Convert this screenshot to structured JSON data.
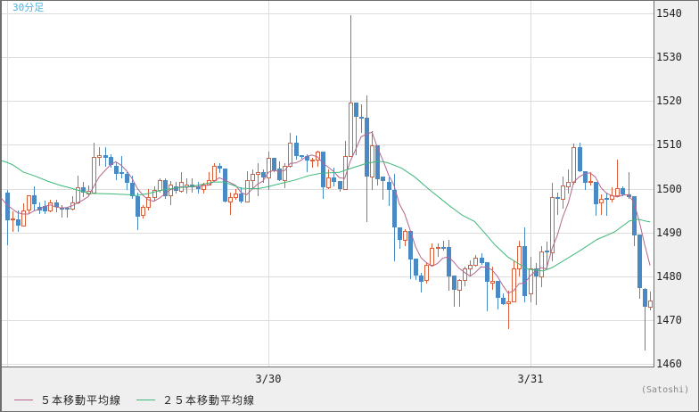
{
  "chart_data": {
    "type": "candlestick",
    "title": "30分足",
    "xlabel": "",
    "ylabel": "",
    "grid": true,
    "yaxis": {
      "position": "right",
      "range": [
        1460,
        1540
      ],
      "ticks": [
        1540,
        1530,
        1520,
        1510,
        1500,
        1490,
        1480,
        1470,
        1460
      ],
      "unit": "(Satoshi)"
    },
    "xaxis": {
      "labels": [
        {
          "text": "3/30",
          "index": 49
        },
        {
          "text": "3/31",
          "index": 97
        }
      ],
      "gridlines_at_index": [
        1,
        49,
        97
      ]
    },
    "legend": {
      "position": "bottom-left"
    },
    "colors": {
      "up": "#d9603b",
      "down": "#4a8ac4",
      "title": "#4db3e6",
      "grid": "#dddddd"
    },
    "candles_format": [
      "open",
      "high",
      "low",
      "close"
    ],
    "candles": [
      [
        1499.1,
        1499.6,
        1487.3,
        1492.7
      ],
      [
        1493.0,
        1494.9,
        1490.3,
        1493.2
      ],
      [
        1493.0,
        1495.1,
        1490.3,
        1491.6
      ],
      [
        1491.6,
        1496.6,
        1491.6,
        1495.1
      ],
      [
        1495.2,
        1498.5,
        1494.5,
        1498.4
      ],
      [
        1498.4,
        1500.5,
        1495.2,
        1496.4
      ],
      [
        1495.8,
        1496.9,
        1494.5,
        1495.0
      ],
      [
        1496.0,
        1497.3,
        1494.5,
        1494.8
      ],
      [
        1495.0,
        1497.5,
        1494.8,
        1496.8
      ],
      [
        1496.8,
        1497.4,
        1494.8,
        1495.9
      ],
      [
        1495.7,
        1496.2,
        1493.6,
        1495.5
      ],
      [
        1495.7,
        1495.9,
        1493.6,
        1495.4
      ],
      [
        1495.4,
        1498.3,
        1495.2,
        1496.8
      ],
      [
        1496.8,
        1503.0,
        1496.6,
        1500.3
      ],
      [
        1500.3,
        1501.5,
        1498.3,
        1499.0
      ],
      [
        1498.9,
        1500.7,
        1498.6,
        1499.5
      ],
      [
        1499.1,
        1510.5,
        1499.1,
        1507.3
      ],
      [
        1507.3,
        1509.5,
        1505.4,
        1507.6
      ],
      [
        1507.6,
        1509.5,
        1505.1,
        1507.1
      ],
      [
        1507.3,
        1507.9,
        1505.0,
        1505.3
      ],
      [
        1505.2,
        1506.0,
        1502.2,
        1503.4
      ],
      [
        1503.7,
        1507.4,
        1502.6,
        1503.3
      ],
      [
        1503.3,
        1503.7,
        1500.0,
        1501.3
      ],
      [
        1501.3,
        1503.0,
        1497.9,
        1498.3
      ],
      [
        1498.3,
        1499.0,
        1490.8,
        1493.6
      ],
      [
        1493.9,
        1496.2,
        1493.4,
        1495.9
      ],
      [
        1495.8,
        1500.0,
        1495.2,
        1498.1
      ],
      [
        1498.1,
        1500.6,
        1497.5,
        1499.6
      ],
      [
        1499.6,
        1502.3,
        1499.2,
        1501.9
      ],
      [
        1502.0,
        1502.3,
        1497.9,
        1498.3
      ],
      [
        1498.4,
        1501.8,
        1496.4,
        1500.9
      ],
      [
        1500.5,
        1501.5,
        1499.1,
        1499.5
      ],
      [
        1499.5,
        1503.7,
        1499.2,
        1501.5
      ],
      [
        1500.6,
        1502.4,
        1499.1,
        1500.9
      ],
      [
        1500.9,
        1502.4,
        1499.2,
        1500.3
      ],
      [
        1500.6,
        1501.5,
        1499.1,
        1499.8
      ],
      [
        1499.8,
        1501.4,
        1499.1,
        1501.0
      ],
      [
        1501.0,
        1503.8,
        1500.9,
        1501.9
      ],
      [
        1501.9,
        1505.9,
        1501.7,
        1505.2
      ],
      [
        1505.2,
        1505.9,
        1503.7,
        1504.5
      ],
      [
        1504.5,
        1504.5,
        1497.1,
        1497.1
      ],
      [
        1497.1,
        1499.0,
        1494.3,
        1498.1
      ],
      [
        1498.0,
        1499.8,
        1497.7,
        1498.8
      ],
      [
        1498.8,
        1500.3,
        1496.8,
        1497.1
      ],
      [
        1497.1,
        1504.0,
        1497.1,
        1501.9
      ],
      [
        1501.9,
        1504.4,
        1500.3,
        1503.4
      ],
      [
        1503.4,
        1505.7,
        1498.4,
        1503.8
      ],
      [
        1503.8,
        1504.4,
        1501.5,
        1502.5
      ],
      [
        1502.5,
        1508.4,
        1500.0,
        1507.0
      ],
      [
        1507.0,
        1507.1,
        1504.0,
        1504.2
      ],
      [
        1504.5,
        1506.3,
        1501.9,
        1501.9
      ],
      [
        1502.0,
        1505.7,
        1500.4,
        1505.2
      ],
      [
        1505.2,
        1512.7,
        1505.0,
        1510.5
      ],
      [
        1510.5,
        1512.1,
        1506.8,
        1507.4
      ],
      [
        1507.6,
        1507.7,
        1507.1,
        1507.3
      ],
      [
        1507.4,
        1507.8,
        1504.0,
        1506.4
      ],
      [
        1506.5,
        1507.0,
        1505.0,
        1506.7
      ],
      [
        1506.7,
        1508.6,
        1505.2,
        1508.4
      ],
      [
        1508.4,
        1508.4,
        1497.9,
        1500.3
      ],
      [
        1500.3,
        1504.4,
        1500.1,
        1502.5
      ],
      [
        1502.5,
        1504.7,
        1500.8,
        1501.5
      ],
      [
        1501.8,
        1501.8,
        1499.5,
        1499.8
      ],
      [
        1499.8,
        1510.8,
        1499.8,
        1507.4
      ],
      [
        1507.4,
        1539.5,
        1507.4,
        1519.6
      ],
      [
        1519.6,
        1519.6,
        1507.8,
        1516.3
      ],
      [
        1516.4,
        1519.2,
        1512.9,
        1516.0
      ],
      [
        1516.1,
        1521.2,
        1492.5,
        1502.8
      ],
      [
        1502.8,
        1513.2,
        1499.8,
        1509.8
      ],
      [
        1509.8,
        1509.8,
        1501.0,
        1502.1
      ],
      [
        1502.7,
        1502.7,
        1497.7,
        1501.8
      ],
      [
        1501.5,
        1502.5,
        1496.2,
        1499.6
      ],
      [
        1499.6,
        1503.4,
        1483.7,
        1491.1
      ],
      [
        1491.1,
        1491.1,
        1486.4,
        1488.2
      ],
      [
        1488.2,
        1490.7,
        1487.1,
        1490.3
      ],
      [
        1490.3,
        1490.3,
        1479.6,
        1483.8
      ],
      [
        1484.0,
        1484.0,
        1479.4,
        1480.1
      ],
      [
        1480.1,
        1480.8,
        1476.4,
        1478.7
      ],
      [
        1479.1,
        1483.0,
        1478.5,
        1482.5
      ],
      [
        1482.5,
        1487.5,
        1482.3,
        1486.4
      ],
      [
        1486.4,
        1487.5,
        1484.7,
        1486.7
      ],
      [
        1486.7,
        1488.0,
        1486.0,
        1486.4
      ],
      [
        1486.6,
        1488.2,
        1476.9,
        1480.0
      ],
      [
        1480.1,
        1480.1,
        1473.2,
        1476.8
      ],
      [
        1476.9,
        1479.3,
        1473.2,
        1479.1
      ],
      [
        1479.1,
        1482.2,
        1478.0,
        1481.8
      ],
      [
        1481.8,
        1483.7,
        1480.1,
        1482.5
      ],
      [
        1482.5,
        1484.8,
        1482.3,
        1484.2
      ],
      [
        1484.2,
        1485.2,
        1482.9,
        1483.1
      ],
      [
        1483.2,
        1483.2,
        1472.2,
        1478.7
      ],
      [
        1478.5,
        1482.1,
        1477.1,
        1478.9
      ],
      [
        1478.9,
        1478.9,
        1472.6,
        1475.0
      ],
      [
        1475.0,
        1476.1,
        1473.7,
        1473.7
      ],
      [
        1473.8,
        1476.7,
        1468.1,
        1474.2
      ],
      [
        1474.2,
        1483.7,
        1474.2,
        1481.8
      ],
      [
        1481.8,
        1488.1,
        1480.1,
        1486.9
      ],
      [
        1486.9,
        1491.1,
        1474.2,
        1475.5
      ],
      [
        1476.0,
        1484.4,
        1474.2,
        1481.8
      ],
      [
        1481.8,
        1483.0,
        1473.7,
        1479.9
      ],
      [
        1479.9,
        1486.9,
        1477.8,
        1485.7
      ],
      [
        1485.9,
        1487.8,
        1481.9,
        1485.5
      ],
      [
        1485.5,
        1501.3,
        1483.7,
        1498.1
      ],
      [
        1498.1,
        1499.1,
        1494.2,
        1497.6
      ],
      [
        1497.6,
        1502.7,
        1495.6,
        1500.7
      ],
      [
        1500.5,
        1504.4,
        1499.0,
        1501.5
      ],
      [
        1501.5,
        1510.3,
        1501.1,
        1509.5
      ],
      [
        1509.5,
        1510.5,
        1504.0,
        1504.0
      ],
      [
        1504.0,
        1504.0,
        1500.0,
        1501.3
      ],
      [
        1501.6,
        1503.7,
        1501.0,
        1501.7
      ],
      [
        1501.5,
        1501.5,
        1493.9,
        1496.5
      ],
      [
        1496.8,
        1498.6,
        1494.2,
        1497.7
      ],
      [
        1497.9,
        1499.0,
        1494.0,
        1497.6
      ],
      [
        1497.6,
        1500.4,
        1497.0,
        1498.5
      ],
      [
        1498.5,
        1506.6,
        1498.3,
        1500.2
      ],
      [
        1500.2,
        1500.5,
        1498.4,
        1498.6
      ],
      [
        1498.6,
        1503.8,
        1497.9,
        1498.1
      ],
      [
        1498.3,
        1498.3,
        1487.1,
        1489.3
      ],
      [
        1489.5,
        1489.5,
        1475.0,
        1477.4
      ],
      [
        1477.0,
        1477.4,
        1463.3,
        1473.0
      ],
      [
        1473.0,
        1476.4,
        1472.5,
        1474.4
      ]
    ],
    "ma5": {
      "label": "５本移動平均線",
      "period": 5,
      "color": "#b5668e",
      "prior_closes": [
        1498.2,
        1496.1,
        1496.6,
        1498.4
      ],
      "lead_in": 1497.8
    },
    "ma25": {
      "label": "２５本移動平均線",
      "period": 25,
      "color": "#3cb878",
      "points": [
        [
          0,
          1506.4
        ],
        [
          1,
          1506.0
        ],
        [
          2,
          1505.5
        ],
        [
          3,
          1504.7
        ],
        [
          4,
          1503.8
        ],
        [
          6.3,
          1502.8
        ],
        [
          8.5,
          1501.7
        ],
        [
          10.7,
          1500.8
        ],
        [
          12.8,
          1500.1
        ],
        [
          15,
          1499.3
        ],
        [
          16.1,
          1498.9
        ],
        [
          20.2,
          1498.8
        ],
        [
          23.7,
          1498.6
        ],
        [
          24.6,
          1498.4
        ],
        [
          27.1,
          1498.9
        ],
        [
          29.2,
          1499.6
        ],
        [
          32.5,
          1500.2
        ],
        [
          35.7,
          1500.7
        ],
        [
          39,
          1501.5
        ],
        [
          40.7,
          1501.5
        ],
        [
          42.3,
          1500.9
        ],
        [
          43.9,
          1500.1
        ],
        [
          45.6,
          1500.0
        ],
        [
          47.2,
          1500.0
        ],
        [
          48.8,
          1500.4
        ],
        [
          51,
          1501.1
        ],
        [
          53.7,
          1501.9
        ],
        [
          56.5,
          1503.0
        ],
        [
          58.7,
          1503.5
        ],
        [
          62,
          1503.7
        ],
        [
          63.6,
          1504.4
        ],
        [
          66.8,
          1505.7
        ],
        [
          69.3,
          1506.3
        ],
        [
          70.9,
          1505.9
        ],
        [
          73.4,
          1504.7
        ],
        [
          75.8,
          1502.7
        ],
        [
          78.3,
          1500.0
        ],
        [
          82.1,
          1496.2
        ],
        [
          84.6,
          1493.9
        ],
        [
          86.8,
          1492.5
        ],
        [
          88.5,
          1490.1
        ],
        [
          90.6,
          1487.1
        ],
        [
          92.9,
          1484.4
        ],
        [
          95.1,
          1482.7
        ],
        [
          96.7,
          1481.6
        ],
        [
          99.4,
          1481.2
        ],
        [
          101.1,
          1482.0
        ],
        [
          106,
          1485.7
        ],
        [
          109.3,
          1488.4
        ],
        [
          112.5,
          1490.1
        ],
        [
          115.2,
          1492.6
        ],
        [
          116.8,
          1493.0
        ],
        [
          118.5,
          1492.5
        ],
        [
          119,
          1492.4
        ]
      ]
    }
  }
}
